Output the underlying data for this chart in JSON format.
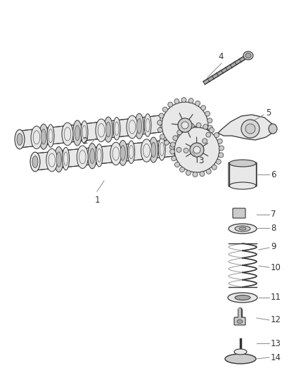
{
  "background_color": "#ffffff",
  "fig_width": 4.38,
  "fig_height": 5.33,
  "dpi": 100,
  "line_color": "#333333",
  "text_color": "#333333",
  "fill_light": "#e8e8e8",
  "fill_mid": "#cccccc",
  "fill_dark": "#999999"
}
